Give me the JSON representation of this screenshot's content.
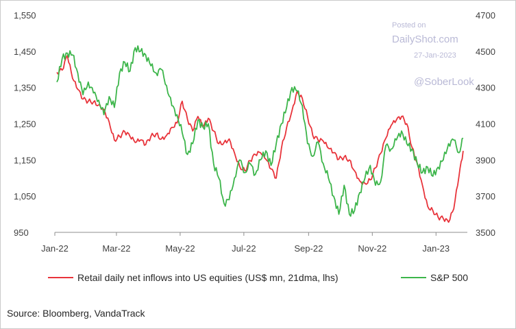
{
  "chart_data": {
    "type": "line",
    "title": "",
    "x_ticks": [
      "Jan-22",
      "Mar-22",
      "May-22",
      "Jul-22",
      "Sep-22",
      "Nov-22",
      "Jan-23"
    ],
    "y_left_ticks": [
      "950",
      "1,050",
      "1,150",
      "1,250",
      "1,350",
      "1,450",
      "1,550"
    ],
    "y_right_ticks": [
      "3500",
      "3700",
      "3900",
      "4100",
      "4300",
      "4500",
      "4700"
    ],
    "ylim_left": [
      950,
      1550
    ],
    "ylim_right": [
      3500,
      4700
    ],
    "legend_position": "bottom",
    "grid": false,
    "series": [
      {
        "name": "Retail daily net inflows into US equities (US$ mn, 21dma, lhs)",
        "axis": "left",
        "color": "#e8333a",
        "points": [
          [
            "2022-01-03",
            1392
          ],
          [
            "2022-01-08",
            1398
          ],
          [
            "2022-01-13",
            1438
          ],
          [
            "2022-01-18",
            1375
          ],
          [
            "2022-01-23",
            1345
          ],
          [
            "2022-01-28",
            1318
          ],
          [
            "2022-02-02",
            1312
          ],
          [
            "2022-02-07",
            1310
          ],
          [
            "2022-02-12",
            1302
          ],
          [
            "2022-02-17",
            1290
          ],
          [
            "2022-02-22",
            1255
          ],
          [
            "2022-02-27",
            1205
          ],
          [
            "2022-03-04",
            1215
          ],
          [
            "2022-03-09",
            1228
          ],
          [
            "2022-03-14",
            1215
          ],
          [
            "2022-03-19",
            1198
          ],
          [
            "2022-03-24",
            1205
          ],
          [
            "2022-03-29",
            1192
          ],
          [
            "2022-04-03",
            1215
          ],
          [
            "2022-04-08",
            1222
          ],
          [
            "2022-04-13",
            1208
          ],
          [
            "2022-04-18",
            1218
          ],
          [
            "2022-04-23",
            1240
          ],
          [
            "2022-04-28",
            1252
          ],
          [
            "2022-05-03",
            1312
          ],
          [
            "2022-05-08",
            1262
          ],
          [
            "2022-05-13",
            1230
          ],
          [
            "2022-05-18",
            1270
          ],
          [
            "2022-05-23",
            1240
          ],
          [
            "2022-05-28",
            1265
          ],
          [
            "2022-06-02",
            1230
          ],
          [
            "2022-06-07",
            1195
          ],
          [
            "2022-06-12",
            1198
          ],
          [
            "2022-06-17",
            1208
          ],
          [
            "2022-06-22",
            1170
          ],
          [
            "2022-06-27",
            1132
          ],
          [
            "2022-07-02",
            1120
          ],
          [
            "2022-07-07",
            1148
          ],
          [
            "2022-07-12",
            1165
          ],
          [
            "2022-07-17",
            1170
          ],
          [
            "2022-07-22",
            1152
          ],
          [
            "2022-07-27",
            1125
          ],
          [
            "2022-08-01",
            1100
          ],
          [
            "2022-08-06",
            1182
          ],
          [
            "2022-08-11",
            1240
          ],
          [
            "2022-08-16",
            1285
          ],
          [
            "2022-08-21",
            1340
          ],
          [
            "2022-08-26",
            1320
          ],
          [
            "2022-08-31",
            1270
          ],
          [
            "2022-09-05",
            1218
          ],
          [
            "2022-09-10",
            1205
          ],
          [
            "2022-09-15",
            1202
          ],
          [
            "2022-09-20",
            1182
          ],
          [
            "2022-09-25",
            1170
          ],
          [
            "2022-09-30",
            1152
          ],
          [
            "2022-10-05",
            1158
          ],
          [
            "2022-10-10",
            1150
          ],
          [
            "2022-10-15",
            1120
          ],
          [
            "2022-10-20",
            1092
          ],
          [
            "2022-10-25",
            1085
          ],
          [
            "2022-10-30",
            1095
          ],
          [
            "2022-11-04",
            1128
          ],
          [
            "2022-11-09",
            1168
          ],
          [
            "2022-11-14",
            1210
          ],
          [
            "2022-11-19",
            1245
          ],
          [
            "2022-11-24",
            1260
          ],
          [
            "2022-11-29",
            1270
          ],
          [
            "2022-12-04",
            1250
          ],
          [
            "2022-12-09",
            1185
          ],
          [
            "2022-12-14",
            1142
          ],
          [
            "2022-12-19",
            1080
          ],
          [
            "2022-12-24",
            1022
          ],
          [
            "2022-12-29",
            1010
          ],
          [
            "2023-01-03",
            992
          ],
          [
            "2023-01-08",
            988
          ],
          [
            "2023-01-13",
            978
          ],
          [
            "2023-01-18",
            1015
          ],
          [
            "2023-01-23",
            1105
          ],
          [
            "2023-01-27",
            1175
          ]
        ]
      },
      {
        "name": "S&P 500",
        "axis": "right",
        "color": "#3cb54a",
        "points": [
          [
            "2022-01-03",
            4330
          ],
          [
            "2022-01-08",
            4460
          ],
          [
            "2022-01-13",
            4490
          ],
          [
            "2022-01-18",
            4480
          ],
          [
            "2022-01-23",
            4380
          ],
          [
            "2022-01-28",
            4260
          ],
          [
            "2022-02-02",
            4330
          ],
          [
            "2022-02-07",
            4270
          ],
          [
            "2022-02-12",
            4230
          ],
          [
            "2022-02-17",
            4150
          ],
          [
            "2022-02-22",
            4250
          ],
          [
            "2022-02-27",
            4190
          ],
          [
            "2022-03-04",
            4380
          ],
          [
            "2022-03-09",
            4440
          ],
          [
            "2022-03-14",
            4390
          ],
          [
            "2022-03-19",
            4520
          ],
          [
            "2022-03-24",
            4500
          ],
          [
            "2022-03-29",
            4480
          ],
          [
            "2022-04-03",
            4420
          ],
          [
            "2022-04-08",
            4380
          ],
          [
            "2022-04-13",
            4400
          ],
          [
            "2022-04-18",
            4310
          ],
          [
            "2022-04-23",
            4200
          ],
          [
            "2022-04-28",
            4150
          ],
          [
            "2022-05-03",
            4050
          ],
          [
            "2022-05-08",
            3930
          ],
          [
            "2022-05-13",
            3990
          ],
          [
            "2022-05-18",
            4120
          ],
          [
            "2022-05-23",
            4080
          ],
          [
            "2022-05-28",
            4100
          ],
          [
            "2022-06-02",
            3880
          ],
          [
            "2022-06-07",
            3800
          ],
          [
            "2022-06-12",
            3660
          ],
          [
            "2022-06-17",
            3680
          ],
          [
            "2022-06-22",
            3800
          ],
          [
            "2022-06-27",
            3900
          ],
          [
            "2022-07-02",
            3830
          ],
          [
            "2022-07-07",
            3880
          ],
          [
            "2022-07-12",
            3820
          ],
          [
            "2022-07-17",
            3900
          ],
          [
            "2022-07-22",
            3950
          ],
          [
            "2022-07-27",
            3870
          ],
          [
            "2022-08-01",
            3990
          ],
          [
            "2022-08-06",
            4100
          ],
          [
            "2022-08-11",
            4190
          ],
          [
            "2022-08-16",
            4300
          ],
          [
            "2022-08-21",
            4280
          ],
          [
            "2022-08-26",
            4200
          ],
          [
            "2022-08-31",
            3990
          ],
          [
            "2022-09-05",
            3920
          ],
          [
            "2022-09-10",
            4000
          ],
          [
            "2022-09-15",
            3880
          ],
          [
            "2022-09-20",
            3800
          ],
          [
            "2022-09-25",
            3700
          ],
          [
            "2022-09-30",
            3600
          ],
          [
            "2022-10-05",
            3760
          ],
          [
            "2022-10-10",
            3600
          ],
          [
            "2022-10-15",
            3620
          ],
          [
            "2022-10-20",
            3720
          ],
          [
            "2022-10-25",
            3800
          ],
          [
            "2022-10-30",
            3870
          ],
          [
            "2022-11-04",
            3760
          ],
          [
            "2022-11-09",
            3780
          ],
          [
            "2022-11-14",
            3980
          ],
          [
            "2022-11-19",
            3960
          ],
          [
            "2022-11-24",
            4010
          ],
          [
            "2022-11-29",
            4060
          ],
          [
            "2022-12-04",
            3990
          ],
          [
            "2022-12-09",
            3960
          ],
          [
            "2022-12-14",
            3880
          ],
          [
            "2022-12-19",
            3830
          ],
          [
            "2022-12-24",
            3860
          ],
          [
            "2022-12-29",
            3810
          ],
          [
            "2023-01-03",
            3860
          ],
          [
            "2023-01-08",
            3900
          ],
          [
            "2023-01-13",
            3990
          ],
          [
            "2023-01-18",
            4010
          ],
          [
            "2023-01-23",
            3940
          ],
          [
            "2023-01-27",
            4020
          ]
        ]
      }
    ]
  },
  "watermark": {
    "posted_on": "Posted on",
    "site": "DailyShot.com",
    "date": "27-Jan-2023",
    "handle": "@SoberLook"
  },
  "source": "Source: Bloomberg, VandaTrack"
}
